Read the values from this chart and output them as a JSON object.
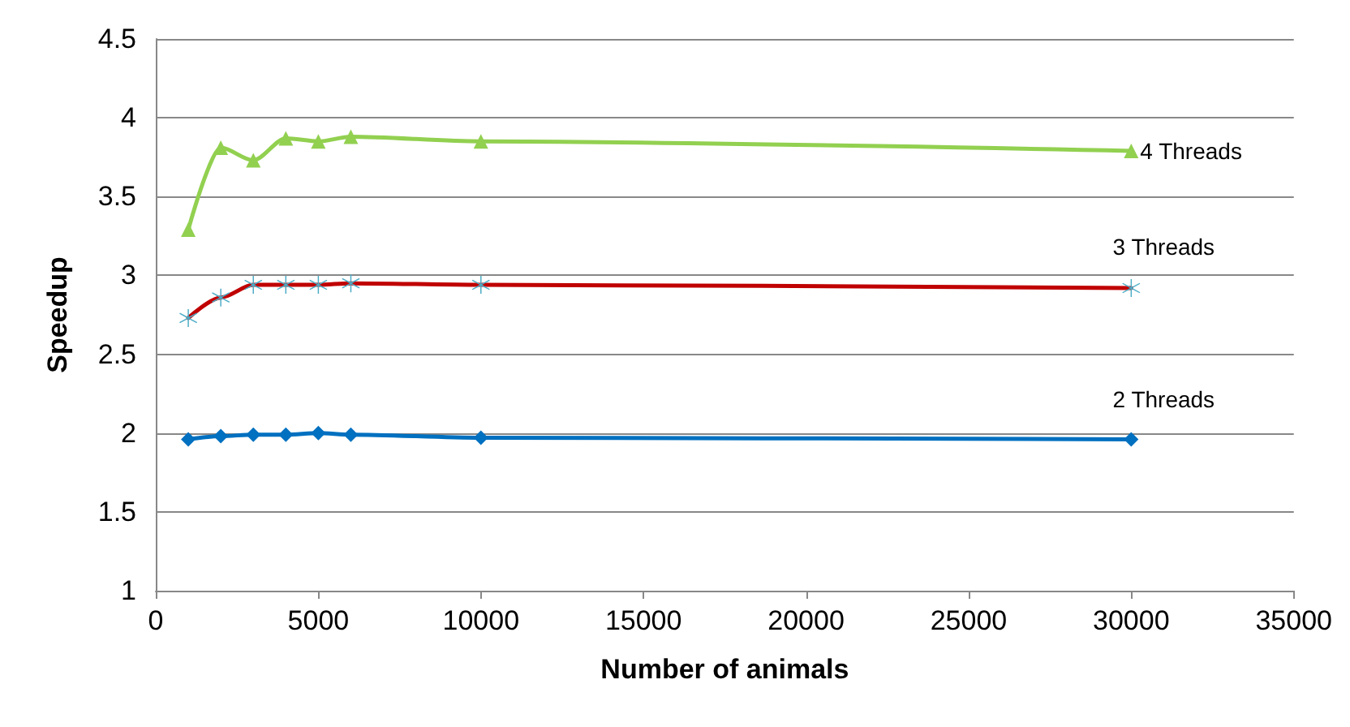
{
  "chart_data": {
    "type": "line",
    "xlabel": "Number of animals",
    "ylabel": "Speedup",
    "x": [
      1000,
      2000,
      3000,
      4000,
      5000,
      6000,
      10000,
      30000
    ],
    "series": [
      {
        "name": "2 Threads",
        "color": "#0070c0",
        "marker": "diamond",
        "values": [
          1.96,
          1.98,
          1.99,
          1.99,
          2.0,
          1.99,
          1.97,
          1.96
        ]
      },
      {
        "name": "3 Threads",
        "color": "#c00000",
        "marker": "cross",
        "values": [
          2.73,
          2.86,
          2.94,
          2.94,
          2.94,
          2.95,
          2.94,
          2.92
        ]
      },
      {
        "name": "4 Threads",
        "color": "#92d050",
        "marker": "triangle",
        "values": [
          3.29,
          3.81,
          3.73,
          3.87,
          3.85,
          3.88,
          3.85,
          3.79
        ]
      }
    ],
    "xlim": [
      0,
      35000
    ],
    "xticks": [
      0,
      5000,
      10000,
      15000,
      20000,
      25000,
      30000,
      35000
    ],
    "ylim": [
      1,
      4.5
    ],
    "yticks": [
      1,
      1.5,
      2,
      2.5,
      3,
      3.5,
      4,
      4.5
    ],
    "grid": "y",
    "legend": false,
    "line_style": "solid"
  }
}
